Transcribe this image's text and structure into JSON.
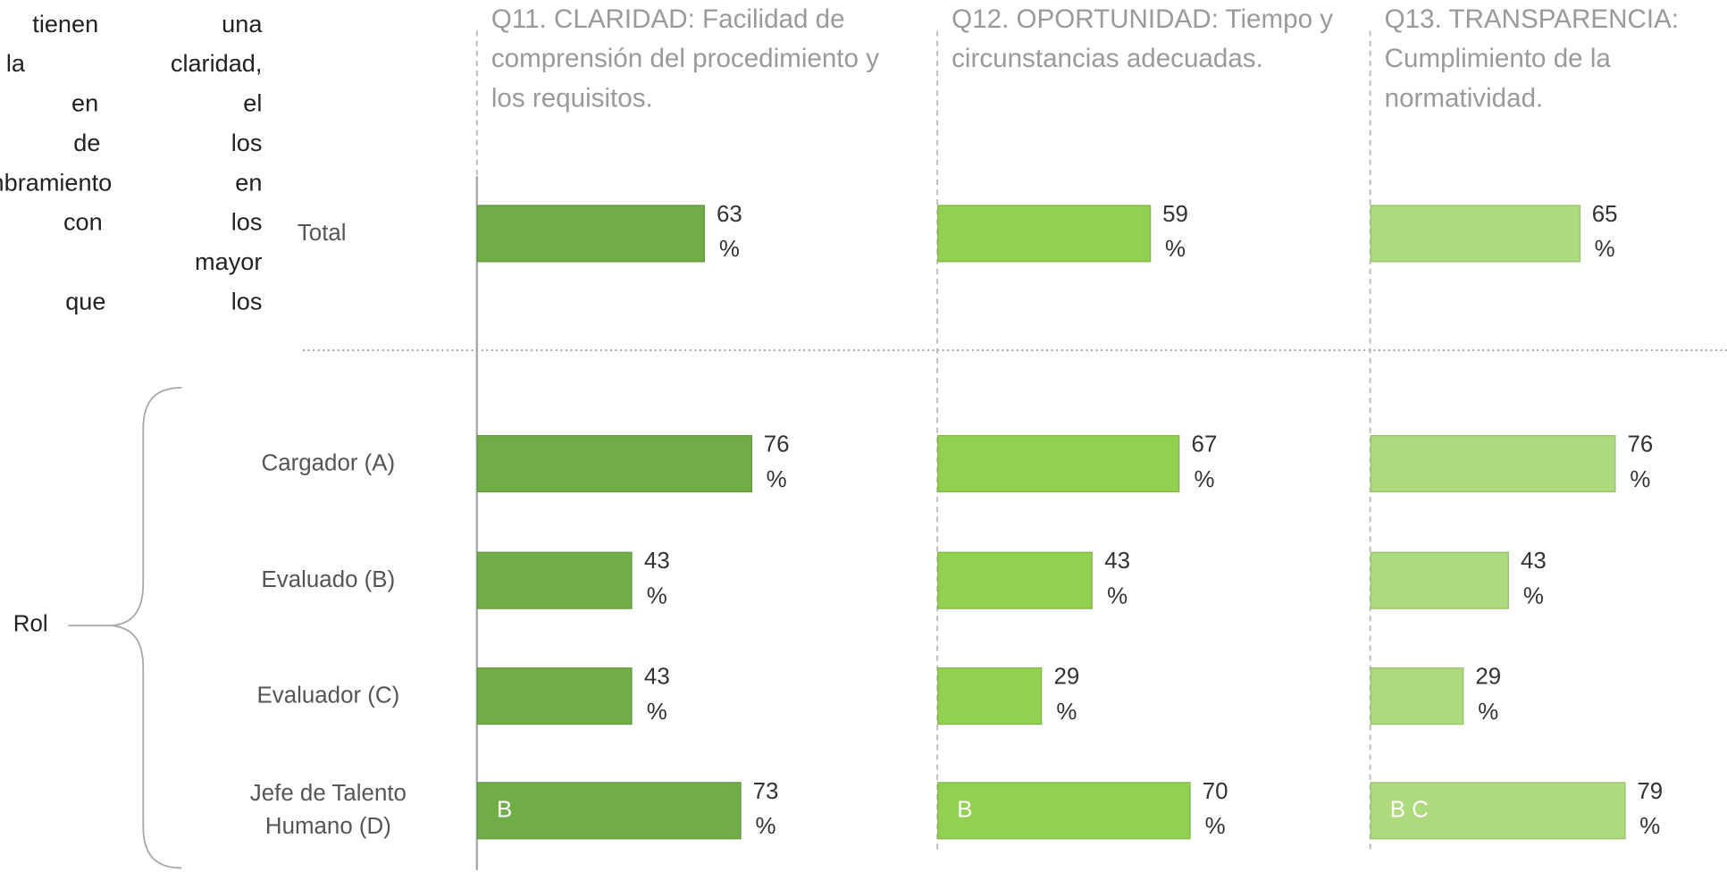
{
  "text_fragment": [
    "humano tienen una",
    "con la claridad,",
    "sparencia en el",
    "publicación de los",
    "y nombramiento en",
    "mparación con los",
    "tienen mayor",
    "nsparencia que los"
  ],
  "group_label": "Rol",
  "chart_data": [
    {
      "type": "bar",
      "title": "Q11. CLARIDAD: Facilidad de comprensión del procedimiento y los requisitos.",
      "categories": [
        "Total",
        "Cargador (A)",
        "Evaluado (B)",
        "Evaluador (C)",
        "Jefe de Talento Humano (D)"
      ],
      "values": [
        63,
        76,
        43,
        43,
        73
      ],
      "value_labels": [
        "63 %",
        "76 %",
        "43 %",
        "43 %",
        "73 %"
      ],
      "bar_annotations": [
        null,
        null,
        null,
        null,
        "B"
      ],
      "color": "#70ad47",
      "xlim": [
        0,
        100
      ]
    },
    {
      "type": "bar",
      "title": "Q12. OPORTUNIDAD: Tiempo y circunstancias adecuadas.",
      "values": [
        59,
        67,
        43,
        29,
        70
      ],
      "value_labels": [
        "59 %",
        "67 %",
        "43 %",
        "29 %",
        "70 %"
      ],
      "bar_annotations": [
        null,
        null,
        null,
        null,
        "B"
      ],
      "color": "#92d050",
      "xlim": [
        0,
        100
      ]
    },
    {
      "type": "bar",
      "title": "Q13. TRANSPARENCIA: Cumplimiento de la normatividad.",
      "values": [
        65,
        76,
        43,
        29,
        79
      ],
      "value_labels": [
        "65 %",
        "76 %",
        "43 %",
        "29 %",
        "79 %"
      ],
      "bar_annotations": [
        null,
        null,
        null,
        null,
        "B C"
      ],
      "color": "#acda7c",
      "xlim": [
        0,
        112
      ]
    }
  ]
}
